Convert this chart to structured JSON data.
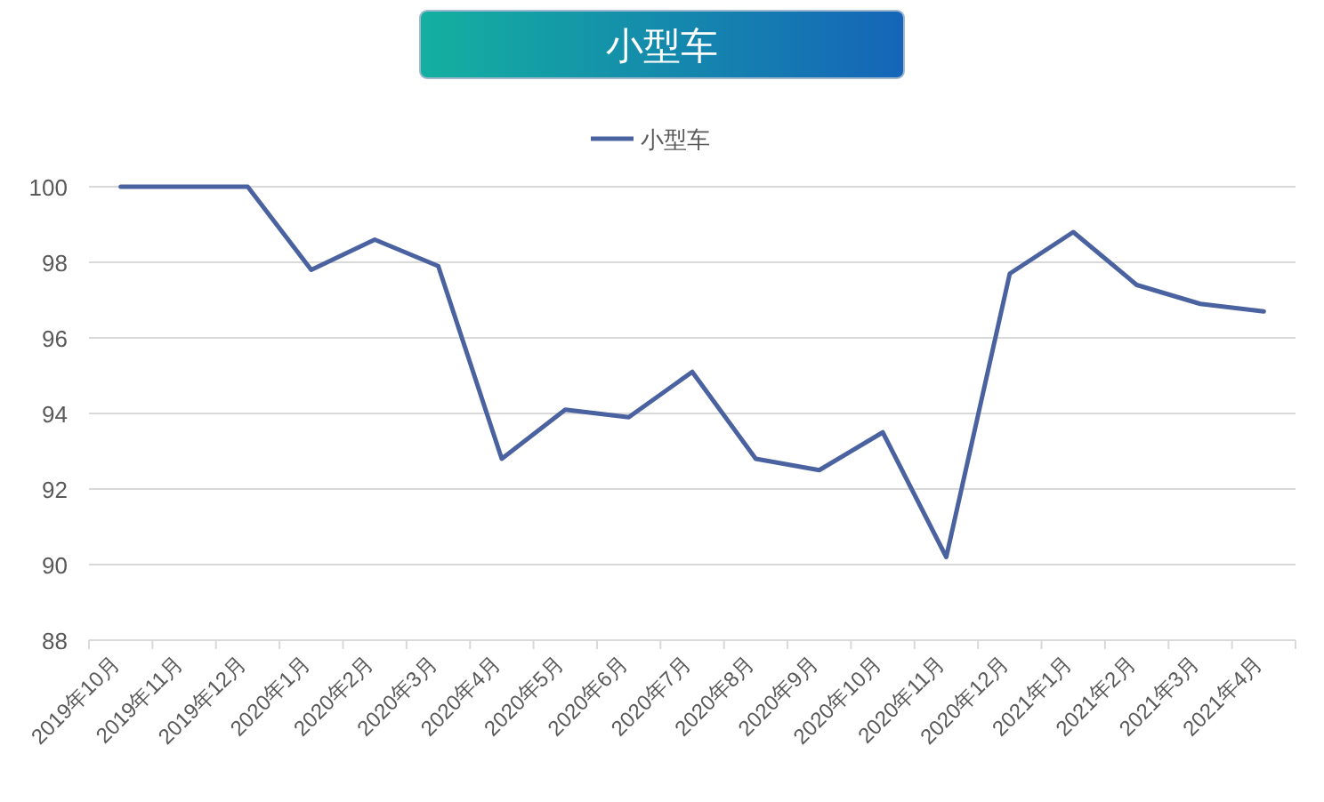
{
  "chart_data": {
    "type": "line",
    "title": "小型车",
    "categories": [
      "2019年10月",
      "2019年11月",
      "2019年12月",
      "2020年1月",
      "2020年2月",
      "2020年3月",
      "2020年4月",
      "2020年5月",
      "2020年6月",
      "2020年7月",
      "2020年8月",
      "2020年9月",
      "2020年10月",
      "2020年11月",
      "2020年12月",
      "2021年1月",
      "2021年2月",
      "2021年3月",
      "2021年4月"
    ],
    "series": [
      {
        "name": "小型车",
        "color": "#4a62a0",
        "values": [
          100,
          100,
          100,
          97.8,
          98.6,
          97.9,
          92.8,
          94.1,
          93.9,
          95.1,
          92.8,
          92.5,
          93.5,
          90.2,
          97.7,
          98.8,
          97.4,
          96.9,
          96.7
        ]
      }
    ],
    "ylim": [
      88,
      100
    ],
    "yticks": [
      88,
      90,
      92,
      94,
      96,
      98,
      100
    ],
    "grid": "y",
    "legend": "top"
  }
}
